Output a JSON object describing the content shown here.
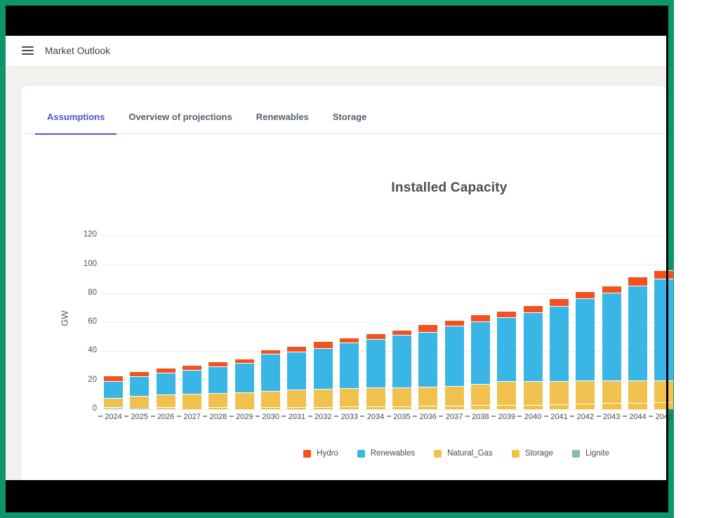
{
  "header": {
    "title": "Market Outlook"
  },
  "tabs": {
    "items": [
      {
        "label": "Assumptions",
        "active": true
      },
      {
        "label": "Overview of projections",
        "active": false
      },
      {
        "label": "Renewables",
        "active": false
      },
      {
        "label": "Storage",
        "active": false
      }
    ]
  },
  "accent_color": "#4d52d3",
  "frame_color": "#0d966c",
  "chart_data": {
    "type": "bar",
    "subtype": "stacked",
    "title": "Installed Capacity",
    "ylabel": "GW",
    "yticks": [
      0,
      20,
      40,
      60,
      80,
      100,
      120
    ],
    "ylim": [
      0,
      130
    ],
    "grid": true,
    "legend_position": "bottom-center",
    "categories": [
      "2024",
      "2025",
      "2026",
      "2027",
      "2028",
      "2029",
      "2030",
      "2031",
      "2032",
      "2033",
      "2034",
      "2035",
      "2036",
      "2037",
      "2038",
      "2039",
      "2040",
      "2041",
      "2042",
      "2043",
      "2044",
      "2045"
    ],
    "series": [
      {
        "name": "Lignite",
        "color": "#b5dccb",
        "values": [
          1.2,
          1.0,
          0.5,
          0,
          0,
          0,
          0,
          0,
          0,
          0,
          0,
          0,
          0,
          0,
          0,
          0,
          0,
          0,
          0,
          0,
          0,
          0
        ]
      },
      {
        "name": "Storage",
        "color": "#f0c23d",
        "values": [
          0,
          0,
          0.7,
          1.0,
          1.2,
          1.2,
          1.3,
          1.5,
          1.5,
          2.0,
          2.0,
          2.0,
          2.5,
          2.5,
          3.0,
          3.0,
          3.0,
          3.5,
          4.0,
          4.5,
          4.5,
          5.0
        ]
      },
      {
        "name": "Natural_Gas",
        "color": "#f1c150",
        "values": [
          6.5,
          8.2,
          9.0,
          9.5,
          9.9,
          10.4,
          11.3,
          12.0,
          12.5,
          12.5,
          13.0,
          13.2,
          13.1,
          13.5,
          14.5,
          16.4,
          16.4,
          15.9,
          16.0,
          15.5,
          15.5,
          15.0
        ]
      },
      {
        "name": "Renewables",
        "color": "#39b5e6",
        "values": [
          11.7,
          13.7,
          15.0,
          16.6,
          18.4,
          20.2,
          25.7,
          26.2,
          28.3,
          31.5,
          33.4,
          36.1,
          37.8,
          41.6,
          43.2,
          43.9,
          47.4,
          51.8,
          56.4,
          60.5,
          65.4,
          70.2
        ]
      },
      {
        "name": "Hydro",
        "color": "#f4511e",
        "values": [
          4.1,
          3.3,
          3.4,
          3.4,
          3.4,
          3.2,
          2.9,
          3.9,
          4.7,
          3.4,
          3.9,
          3.4,
          5.2,
          4.0,
          4.7,
          4.6,
          4.9,
          5.2,
          4.8,
          4.9,
          6.0,
          5.7
        ]
      }
    ],
    "legend": [
      {
        "label": "Hydro",
        "color": "#f4511e"
      },
      {
        "label": "Renewables",
        "color": "#39b5e6"
      },
      {
        "label": "Natural_Gas",
        "color": "#f1c150"
      },
      {
        "label": "Storage",
        "color": "#f0c23d"
      },
      {
        "label": "Lignite",
        "color": "#86c0a2"
      }
    ]
  }
}
